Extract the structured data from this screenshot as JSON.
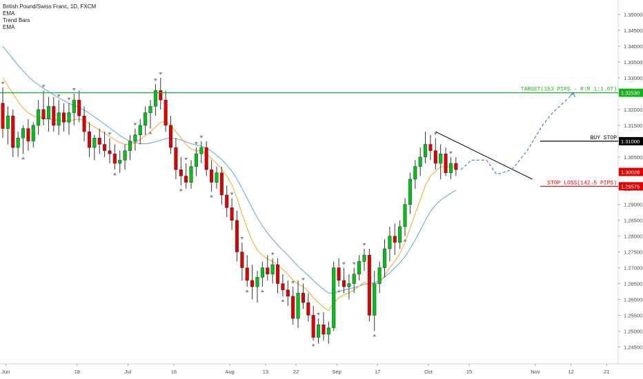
{
  "legend": {
    "symbol": "British Pound/Swiss Franc, 1D, FXCM",
    "items": [
      "EMA",
      "Trend Bars",
      "EMA"
    ]
  },
  "colors": {
    "bull": "#00c21b",
    "bear": "#e00000",
    "ema_fast": "#f5a623",
    "ema_slow": "#5aa2e6",
    "target": "#15b31e",
    "buy_stop": "#000000",
    "stop_loss": "#e00000",
    "trendline": "#000000",
    "projection": "#3d7fd6",
    "marker": "#8a8a8a"
  },
  "chart_data": {
    "type": "candlestick",
    "symbol": "GBPCHF",
    "timeframe": "1D",
    "ylim": [
      1.244,
      1.352
    ],
    "y_ticks": [
      "1.35000",
      "1.34500",
      "1.34000",
      "1.33500",
      "1.33000",
      "1.32500",
      "1.32000",
      "1.31500",
      "1.31000",
      "1.30500",
      "1.30000",
      "1.29500",
      "1.29000",
      "1.28500",
      "1.28000",
      "1.27500",
      "1.27000",
      "1.26500",
      "1.26000",
      "1.25500",
      "1.25000",
      "1.24500"
    ],
    "x_labels": [
      "Jun",
      "18",
      "Jul",
      "16",
      "Aug",
      "13",
      "22",
      "Sep",
      "17",
      "Oct",
      "15",
      "Nov",
      "12",
      "21"
    ],
    "candles": [
      [
        1.322,
        1.327,
        1.311,
        1.314
      ],
      [
        1.314,
        1.321,
        1.309,
        1.318
      ],
      [
        1.318,
        1.32,
        1.305,
        1.308
      ],
      [
        1.308,
        1.313,
        1.305,
        1.311
      ],
      [
        1.311,
        1.315,
        1.306,
        1.314
      ],
      [
        1.314,
        1.317,
        1.307,
        1.31
      ],
      [
        1.31,
        1.316,
        1.308,
        1.315
      ],
      [
        1.315,
        1.323,
        1.312,
        1.32
      ],
      [
        1.32,
        1.326,
        1.315,
        1.317
      ],
      [
        1.317,
        1.324,
        1.313,
        1.321
      ],
      [
        1.321,
        1.324,
        1.313,
        1.315
      ],
      [
        1.315,
        1.323,
        1.312,
        1.319
      ],
      [
        1.319,
        1.322,
        1.313,
        1.316
      ],
      [
        1.316,
        1.322,
        1.312,
        1.319
      ],
      [
        1.319,
        1.325,
        1.315,
        1.323
      ],
      [
        1.323,
        1.326,
        1.316,
        1.318
      ],
      [
        1.318,
        1.321,
        1.31,
        1.313
      ],
      [
        1.313,
        1.316,
        1.305,
        1.308
      ],
      [
        1.308,
        1.312,
        1.304,
        1.311
      ],
      [
        1.311,
        1.314,
        1.306,
        1.309
      ],
      [
        1.309,
        1.313,
        1.305,
        1.307
      ],
      [
        1.307,
        1.311,
        1.303,
        1.306
      ],
      [
        1.306,
        1.309,
        1.301,
        1.303
      ],
      [
        1.303,
        1.307,
        1.3,
        1.304
      ],
      [
        1.304,
        1.309,
        1.301,
        1.307
      ],
      [
        1.307,
        1.312,
        1.304,
        1.31
      ],
      [
        1.31,
        1.314,
        1.307,
        1.312
      ],
      [
        1.312,
        1.317,
        1.309,
        1.315
      ],
      [
        1.315,
        1.321,
        1.312,
        1.319
      ],
      [
        1.319,
        1.323,
        1.314,
        1.321
      ],
      [
        1.321,
        1.328,
        1.318,
        1.326
      ],
      [
        1.326,
        1.33,
        1.32,
        1.323
      ],
      [
        1.323,
        1.326,
        1.313,
        1.315
      ],
      [
        1.315,
        1.318,
        1.306,
        1.308
      ],
      [
        1.308,
        1.311,
        1.298,
        1.301
      ],
      [
        1.301,
        1.305,
        1.296,
        1.299
      ],
      [
        1.299,
        1.303,
        1.295,
        1.297
      ],
      [
        1.297,
        1.304,
        1.295,
        1.302
      ],
      [
        1.302,
        1.308,
        1.299,
        1.306
      ],
      [
        1.306,
        1.31,
        1.303,
        1.308
      ],
      [
        1.308,
        1.31,
        1.299,
        1.301
      ],
      [
        1.301,
        1.304,
        1.294,
        1.297
      ],
      [
        1.297,
        1.302,
        1.295,
        1.3
      ],
      [
        1.3,
        1.302,
        1.29,
        1.293
      ],
      [
        1.293,
        1.296,
        1.286,
        1.289
      ],
      [
        1.289,
        1.292,
        1.282,
        1.285
      ],
      [
        1.285,
        1.288,
        1.272,
        1.275
      ],
      [
        1.275,
        1.278,
        1.266,
        1.27
      ],
      [
        1.27,
        1.274,
        1.264,
        1.266
      ],
      [
        1.266,
        1.271,
        1.26,
        1.264
      ],
      [
        1.264,
        1.269,
        1.259,
        1.267
      ],
      [
        1.267,
        1.272,
        1.264,
        1.27
      ],
      [
        1.27,
        1.274,
        1.266,
        1.268
      ],
      [
        1.268,
        1.273,
        1.265,
        1.271
      ],
      [
        1.271,
        1.273,
        1.262,
        1.265
      ],
      [
        1.265,
        1.268,
        1.261,
        1.263
      ],
      [
        1.263,
        1.266,
        1.258,
        1.261
      ],
      [
        1.261,
        1.264,
        1.252,
        1.254
      ],
      [
        1.254,
        1.266,
        1.251,
        1.262
      ],
      [
        1.262,
        1.265,
        1.257,
        1.259
      ],
      [
        1.259,
        1.262,
        1.253,
        1.255
      ],
      [
        1.255,
        1.258,
        1.247,
        1.248
      ],
      [
        1.248,
        1.254,
        1.246,
        1.252
      ],
      [
        1.252,
        1.256,
        1.247,
        1.249
      ],
      [
        1.249,
        1.253,
        1.246,
        1.251
      ],
      [
        1.251,
        1.272,
        1.25,
        1.27
      ],
      [
        1.27,
        1.273,
        1.264,
        1.266
      ],
      [
        1.266,
        1.27,
        1.262,
        1.264
      ],
      [
        1.264,
        1.268,
        1.26,
        1.265
      ],
      [
        1.265,
        1.27,
        1.262,
        1.268
      ],
      [
        1.268,
        1.274,
        1.266,
        1.272
      ],
      [
        1.272,
        1.276,
        1.269,
        1.274
      ],
      [
        1.274,
        1.276,
        1.253,
        1.255
      ],
      [
        1.255,
        1.269,
        1.25,
        1.265
      ],
      [
        1.265,
        1.272,
        1.262,
        1.27
      ],
      [
        1.27,
        1.279,
        1.267,
        1.276
      ],
      [
        1.276,
        1.283,
        1.272,
        1.28
      ],
      [
        1.28,
        1.284,
        1.274,
        1.278
      ],
      [
        1.278,
        1.285,
        1.276,
        1.283
      ],
      [
        1.283,
        1.292,
        1.28,
        1.29
      ],
      [
        1.29,
        1.3,
        1.287,
        1.298
      ],
      [
        1.298,
        1.304,
        1.295,
        1.302
      ],
      [
        1.302,
        1.308,
        1.299,
        1.305
      ],
      [
        1.305,
        1.313,
        1.303,
        1.309
      ],
      [
        1.309,
        1.312,
        1.304,
        1.307
      ],
      [
        1.307,
        1.311,
        1.301,
        1.303
      ],
      [
        1.303,
        1.309,
        1.298,
        1.306
      ],
      [
        1.306,
        1.308,
        1.299,
        1.3
      ],
      [
        1.3,
        1.305,
        1.298,
        1.303
      ],
      [
        1.303,
        1.305,
        1.299,
        1.301
      ]
    ],
    "ema_fast": [
      1.33,
      1.3275,
      1.325,
      1.3225,
      1.3205,
      1.319,
      1.318,
      1.3175,
      1.3172,
      1.317,
      1.3168,
      1.3166,
      1.3165,
      1.3164,
      1.3168,
      1.317,
      1.3165,
      1.3155,
      1.3145,
      1.3135,
      1.3125,
      1.3115,
      1.3105,
      1.3095,
      1.309,
      1.309,
      1.3095,
      1.3105,
      1.3118,
      1.313,
      1.3145,
      1.316,
      1.3162,
      1.315,
      1.313,
      1.311,
      1.309,
      1.3075,
      1.307,
      1.307,
      1.306,
      1.3045,
      1.303,
      1.3012,
      1.299,
      1.2962,
      1.292,
      1.287,
      1.2825,
      1.2785,
      1.2755,
      1.274,
      1.2728,
      1.272,
      1.2708,
      1.2695,
      1.268,
      1.266,
      1.265,
      1.264,
      1.2625,
      1.2605,
      1.259,
      1.2575,
      1.2565,
      1.259,
      1.2605,
      1.2615,
      1.262,
      1.263,
      1.2642,
      1.2655,
      1.2645,
      1.2645,
      1.2655,
      1.2675,
      1.27,
      1.272,
      1.2745,
      1.278,
      1.2825,
      1.287,
      1.2915,
      1.296,
      1.299,
      1.3005,
      1.302,
      1.3018,
      1.302,
      1.3018
    ],
    "ema_slow": [
      1.34,
      1.338,
      1.336,
      1.334,
      1.3322,
      1.3305,
      1.329,
      1.3278,
      1.3267,
      1.3257,
      1.3247,
      1.3237,
      1.3228,
      1.322,
      1.3213,
      1.3206,
      1.3198,
      1.3188,
      1.3177,
      1.3166,
      1.3154,
      1.3142,
      1.313,
      1.3118,
      1.3108,
      1.31,
      1.3095,
      1.3092,
      1.3092,
      1.3094,
      1.3098,
      1.3103,
      1.3108,
      1.311,
      1.3108,
      1.3104,
      1.3098,
      1.3092,
      1.3088,
      1.3085,
      1.3078,
      1.3068,
      1.3056,
      1.3042,
      1.3025,
      1.3005,
      1.298,
      1.295,
      1.292,
      1.2888,
      1.2858,
      1.2832,
      1.281,
      1.279,
      1.2772,
      1.2755,
      1.274,
      1.2722,
      1.2705,
      1.269,
      1.2676,
      1.266,
      1.2645,
      1.2632,
      1.262,
      1.262,
      1.2625,
      1.263,
      1.2633,
      1.2637,
      1.2642,
      1.2648,
      1.265,
      1.2653,
      1.266,
      1.267,
      1.2684,
      1.27,
      1.2716,
      1.2735,
      1.276,
      1.2788,
      1.2818,
      1.285,
      1.2878,
      1.2898,
      1.2914,
      1.2925,
      1.2935,
      1.2945
    ],
    "annotations": {
      "target": {
        "price": 1.3253,
        "label": "TARGET(153 PIPS - R:R 1:1.07)",
        "badge": "1.32530"
      },
      "buy_stop": {
        "price": 1.31,
        "label": "BUY STOP",
        "badge": "1.31000"
      },
      "stop_loss": {
        "price": 1.29575,
        "label": "STOP LOSS(142.5 PIPS)",
        "badge": "1.29575"
      },
      "last_price": {
        "price": 1.30028,
        "badge": "1.30028"
      }
    },
    "trendline": [
      [
        85,
        1.313
      ],
      [
        104,
        1.298
      ]
    ],
    "projection": [
      [
        90,
        1.301
      ],
      [
        92,
        1.304
      ],
      [
        95,
        1.304
      ],
      [
        97,
        1.2995
      ],
      [
        100,
        1.301
      ],
      [
        103,
        1.307
      ],
      [
        106,
        1.315
      ],
      [
        108,
        1.319
      ],
      [
        110,
        1.322
      ],
      [
        112,
        1.325
      ]
    ],
    "markers": {
      "down": [
        0,
        8,
        11,
        13,
        14,
        21,
        26,
        30,
        31,
        36,
        38,
        39,
        45,
        47,
        53,
        57,
        59,
        62,
        67,
        69,
        71,
        85,
        88
      ],
      "up": [
        4,
        22,
        29,
        35,
        41,
        48,
        51,
        55,
        61,
        66,
        73,
        79,
        90
      ]
    }
  }
}
